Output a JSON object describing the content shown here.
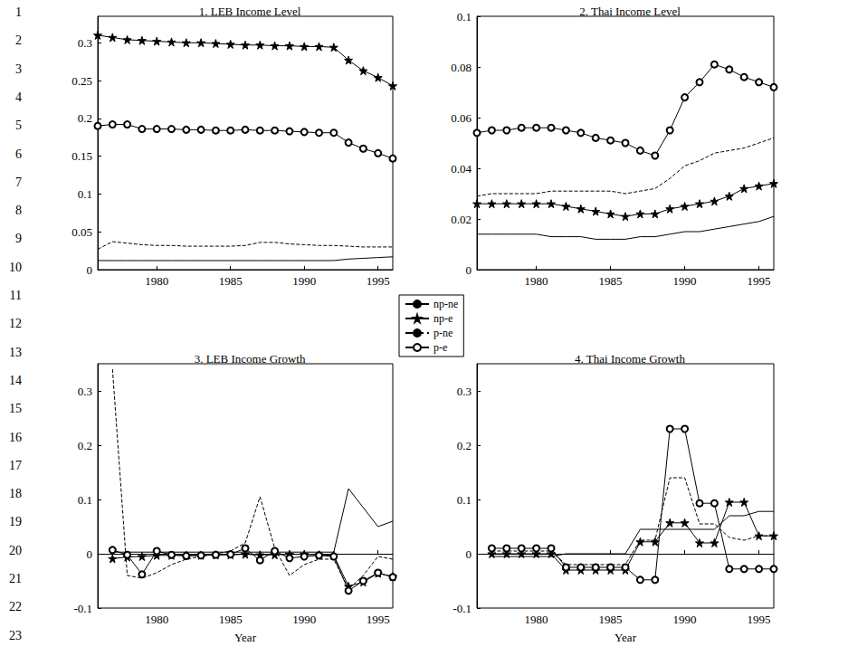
{
  "page_line_numbers": [
    1,
    2,
    3,
    4,
    5,
    6,
    7,
    8,
    9,
    10,
    11,
    12,
    13,
    14,
    15,
    16,
    17,
    18,
    19,
    20,
    21,
    22,
    23
  ],
  "chart_data": [
    {
      "type": "line",
      "title": "1. LEB Income Level",
      "legend": "center",
      "x": [
        1976,
        1977,
        1978,
        1979,
        1980,
        1981,
        1982,
        1983,
        1984,
        1985,
        1986,
        1987,
        1988,
        1989,
        1990,
        1991,
        1992,
        1993,
        1994,
        1995,
        1996
      ],
      "xlim": [
        1976,
        1996
      ],
      "xticks": [
        1980,
        1985,
        1990,
        1995
      ],
      "ylim": [
        0,
        0.335
      ],
      "yticks": [
        0,
        0.05,
        0.1,
        0.15,
        0.2,
        0.25,
        0.3
      ],
      "grid": false,
      "series": [
        {
          "name": "np-ne",
          "color": "#000000",
          "marker": "none",
          "line_style": "solid",
          "values": [
            0.012,
            0.012,
            0.012,
            0.012,
            0.012,
            0.012,
            0.012,
            0.012,
            0.012,
            0.012,
            0.012,
            0.012,
            0.012,
            0.012,
            0.012,
            0.012,
            0.012,
            0.014,
            0.015,
            0.016,
            0.017
          ]
        },
        {
          "name": "np-e",
          "color": "#000000",
          "marker": "star",
          "line_style": "solid",
          "values": [
            0.31,
            0.307,
            0.304,
            0.303,
            0.302,
            0.301,
            0.3,
            0.3,
            0.299,
            0.298,
            0.297,
            0.297,
            0.296,
            0.296,
            0.295,
            0.295,
            0.294,
            0.277,
            0.263,
            0.254,
            0.243
          ]
        },
        {
          "name": "p-ne",
          "color": "#000000",
          "marker": "none",
          "line_style": "dashed",
          "values": [
            0.027,
            0.037,
            0.035,
            0.033,
            0.032,
            0.032,
            0.031,
            0.031,
            0.031,
            0.031,
            0.032,
            0.036,
            0.036,
            0.034,
            0.033,
            0.032,
            0.032,
            0.031,
            0.03,
            0.03,
            0.03
          ]
        },
        {
          "name": "p-e",
          "color": "#000000",
          "marker": "circle",
          "line_style": "solid",
          "values": [
            0.19,
            0.192,
            0.192,
            0.186,
            0.186,
            0.186,
            0.185,
            0.185,
            0.184,
            0.184,
            0.185,
            0.184,
            0.184,
            0.183,
            0.182,
            0.181,
            0.181,
            0.168,
            0.16,
            0.154,
            0.147
          ]
        }
      ]
    },
    {
      "type": "line",
      "title": "2. Thai Income Level",
      "x": [
        1976,
        1977,
        1978,
        1979,
        1980,
        1981,
        1982,
        1983,
        1984,
        1985,
        1986,
        1987,
        1988,
        1989,
        1990,
        1991,
        1992,
        1993,
        1994,
        1995,
        1996
      ],
      "xlim": [
        1976,
        1996
      ],
      "xticks": [
        1980,
        1985,
        1990,
        1995
      ],
      "ylim": [
        0,
        0.1
      ],
      "yticks": [
        0,
        0.02,
        0.04,
        0.06,
        0.08,
        0.1
      ],
      "grid": false,
      "series": [
        {
          "name": "np-ne",
          "color": "#000000",
          "marker": "none",
          "line_style": "solid",
          "values": [
            0.014,
            0.014,
            0.014,
            0.014,
            0.014,
            0.013,
            0.013,
            0.013,
            0.012,
            0.012,
            0.012,
            0.013,
            0.013,
            0.014,
            0.015,
            0.015,
            0.016,
            0.017,
            0.018,
            0.019,
            0.021
          ]
        },
        {
          "name": "np-e",
          "color": "#000000",
          "marker": "star",
          "line_style": "solid",
          "values": [
            0.026,
            0.026,
            0.026,
            0.026,
            0.026,
            0.026,
            0.025,
            0.024,
            0.023,
            0.022,
            0.021,
            0.022,
            0.022,
            0.024,
            0.025,
            0.026,
            0.027,
            0.029,
            0.032,
            0.033,
            0.034
          ]
        },
        {
          "name": "p-ne",
          "color": "#000000",
          "marker": "none",
          "line_style": "dashed",
          "values": [
            0.029,
            0.03,
            0.03,
            0.03,
            0.03,
            0.031,
            0.031,
            0.031,
            0.031,
            0.031,
            0.03,
            0.031,
            0.032,
            0.036,
            0.041,
            0.043,
            0.046,
            0.047,
            0.048,
            0.05,
            0.052
          ]
        },
        {
          "name": "p-e",
          "color": "#000000",
          "marker": "circle",
          "line_style": "solid",
          "values": [
            0.054,
            0.055,
            0.055,
            0.056,
            0.056,
            0.056,
            0.055,
            0.054,
            0.052,
            0.051,
            0.05,
            0.047,
            0.045,
            0.055,
            0.068,
            0.074,
            0.081,
            0.079,
            0.076,
            0.074,
            0.072
          ]
        }
      ]
    },
    {
      "type": "line",
      "title": "3. LEB Income Growth",
      "xlabel": "Year",
      "x": [
        1977,
        1978,
        1979,
        1980,
        1981,
        1982,
        1983,
        1984,
        1985,
        1986,
        1987,
        1988,
        1989,
        1990,
        1991,
        1992,
        1993,
        1994,
        1995,
        1996
      ],
      "xlim": [
        1976,
        1996
      ],
      "xticks": [
        1980,
        1985,
        1990,
        1995
      ],
      "ylim": [
        -0.1,
        0.35
      ],
      "yticks": [
        -0.1,
        0,
        0.1,
        0.2,
        0.3
      ],
      "grid": false,
      "series": [
        {
          "name": "np-ne",
          "color": "#000000",
          "marker": "none",
          "line_style": "solid",
          "values": [
            0.003,
            0.003,
            0.003,
            0.003,
            0.003,
            0.003,
            0.003,
            0.003,
            0.003,
            0.003,
            0.003,
            0.003,
            0.003,
            0.003,
            0.003,
            0.003,
            0.12,
            0.085,
            0.05,
            0.06
          ]
        },
        {
          "name": "np-e",
          "color": "#000000",
          "marker": "star",
          "line_style": "solid",
          "values": [
            -0.009,
            -0.006,
            -0.005,
            -0.003,
            -0.003,
            -0.003,
            -0.003,
            -0.002,
            -0.002,
            -0.001,
            -0.002,
            -0.002,
            -0.001,
            -0.001,
            -0.002,
            -0.003,
            -0.06,
            -0.052,
            -0.036,
            -0.042
          ]
        },
        {
          "name": "p-ne",
          "color": "#000000",
          "marker": "none",
          "line_style": "dashed",
          "values": [
            0.34,
            -0.04,
            -0.045,
            -0.035,
            -0.02,
            -0.01,
            -0.005,
            0,
            0.005,
            0.02,
            0.105,
            0.01,
            -0.04,
            -0.02,
            -0.01,
            -0.01,
            -0.065,
            -0.04,
            -0.005,
            -0.01
          ]
        },
        {
          "name": "p-e",
          "color": "#000000",
          "marker": "circle",
          "line_style": "solid",
          "values": [
            0.007,
            -0.002,
            -0.038,
            0.005,
            -0.002,
            -0.004,
            -0.003,
            -0.002,
            -0.001,
            0.01,
            -0.012,
            0.005,
            -0.008,
            -0.005,
            -0.003,
            -0.005,
            -0.068,
            -0.05,
            -0.035,
            -0.043
          ]
        }
      ]
    },
    {
      "type": "line",
      "title": "4. Thai Income Growth",
      "xlabel": "Year",
      "x": [
        1977,
        1978,
        1979,
        1980,
        1981,
        1982,
        1983,
        1984,
        1985,
        1986,
        1987,
        1988,
        1989,
        1990,
        1991,
        1992,
        1993,
        1994,
        1995,
        1996
      ],
      "xlim": [
        1976,
        1996
      ],
      "xticks": [
        1980,
        1985,
        1990,
        1995
      ],
      "ylim": [
        -0.1,
        0.35
      ],
      "yticks": [
        -0.1,
        0,
        0.1,
        0.2,
        0.3
      ],
      "grid": false,
      "series": [
        {
          "name": "np-ne",
          "color": "#000000",
          "marker": "none",
          "line_style": "solid",
          "values": [
            -0.005,
            -0.005,
            -0.005,
            -0.005,
            -0.005,
            0,
            0,
            0,
            0,
            0,
            0.045,
            0.045,
            0.045,
            0.045,
            0.045,
            0.045,
            0.07,
            0.07,
            0.078,
            0.078
          ]
        },
        {
          "name": "np-e",
          "color": "#000000",
          "marker": "star",
          "line_style": "solid",
          "values": [
            0,
            0,
            0,
            0,
            0,
            -0.03,
            -0.03,
            -0.03,
            -0.03,
            -0.03,
            0.022,
            0.022,
            0.057,
            0.057,
            0.02,
            0.02,
            0.095,
            0.095,
            0.033,
            0.033
          ]
        },
        {
          "name": "p-ne",
          "color": "#000000",
          "marker": "none",
          "line_style": "dashed",
          "values": [
            0.005,
            0.005,
            0.005,
            0.005,
            0.005,
            -0.02,
            -0.02,
            -0.02,
            -0.02,
            -0.02,
            0.025,
            0.025,
            0.14,
            0.14,
            0.055,
            0.055,
            0.03,
            0.025,
            0.033,
            0.033
          ]
        },
        {
          "name": "p-e",
          "color": "#000000",
          "marker": "circle",
          "line_style": "solid",
          "values": [
            0.01,
            0.01,
            0.01,
            0.01,
            0.01,
            -0.025,
            -0.025,
            -0.025,
            -0.025,
            -0.025,
            -0.048,
            -0.048,
            0.23,
            0.23,
            0.093,
            0.093,
            -0.028,
            -0.028,
            -0.028,
            -0.028
          ]
        }
      ]
    }
  ]
}
